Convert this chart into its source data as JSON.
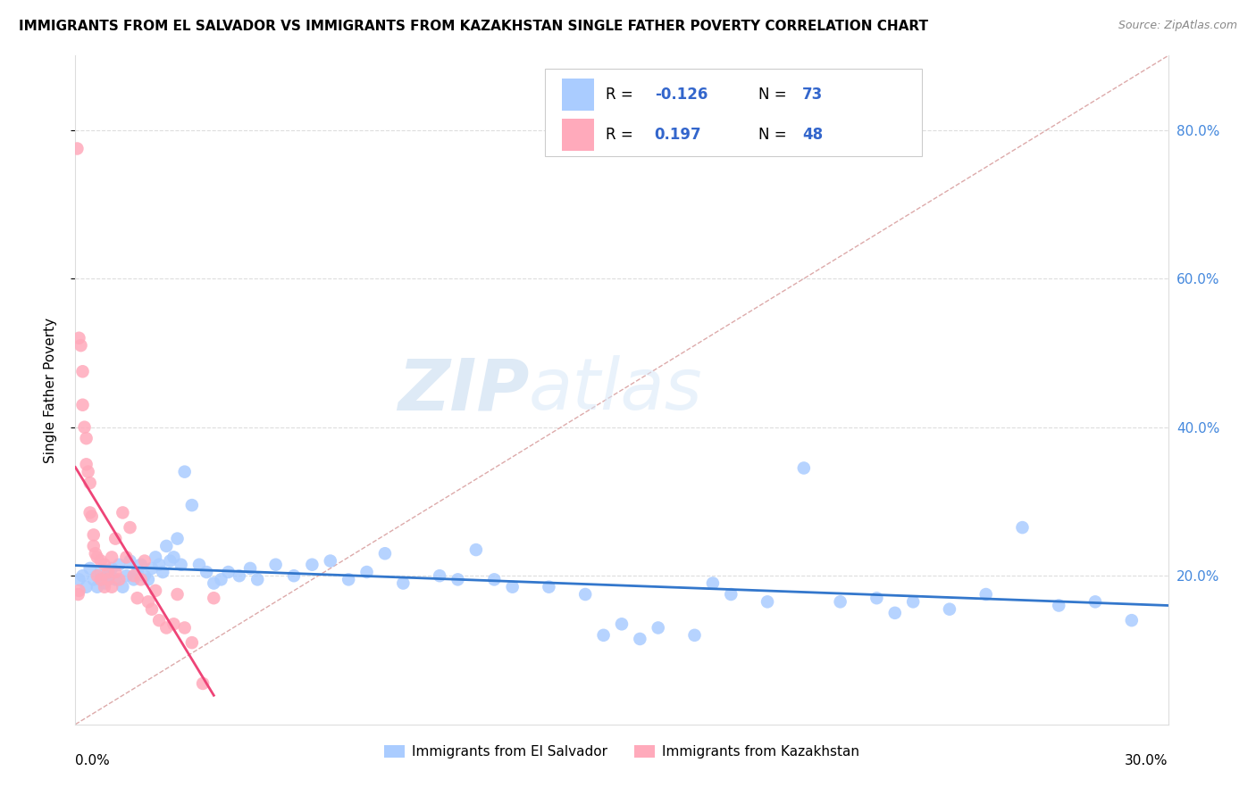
{
  "title": "IMMIGRANTS FROM EL SALVADOR VS IMMIGRANTS FROM KAZAKHSTAN SINGLE FATHER POVERTY CORRELATION CHART",
  "source": "Source: ZipAtlas.com",
  "ylabel": "Single Father Poverty",
  "right_yticks": [
    "80.0%",
    "60.0%",
    "40.0%",
    "20.0%"
  ],
  "right_ytick_vals": [
    0.8,
    0.6,
    0.4,
    0.2
  ],
  "legend1_label": "Immigrants from El Salvador",
  "legend2_label": "Immigrants from Kazakhstan",
  "R_el_salvador": -0.126,
  "N_el_salvador": 73,
  "R_kazakhstan": 0.197,
  "N_kazakhstan": 48,
  "el_salvador_color": "#aaccff",
  "kazakhstan_color": "#ffaabb",
  "el_salvador_line_color": "#3377cc",
  "kazakhstan_line_color": "#ee4477",
  "diagonal_color": "#ddaaaa",
  "xlim": [
    0.0,
    0.3
  ],
  "ylim": [
    0.0,
    0.9
  ],
  "el_salvador_x": [
    0.001,
    0.002,
    0.003,
    0.004,
    0.005,
    0.006,
    0.007,
    0.008,
    0.009,
    0.01,
    0.011,
    0.012,
    0.013,
    0.014,
    0.015,
    0.016,
    0.017,
    0.018,
    0.019,
    0.02,
    0.021,
    0.022,
    0.023,
    0.024,
    0.025,
    0.026,
    0.027,
    0.028,
    0.029,
    0.03,
    0.032,
    0.034,
    0.036,
    0.038,
    0.04,
    0.042,
    0.045,
    0.048,
    0.05,
    0.055,
    0.06,
    0.065,
    0.07,
    0.075,
    0.08,
    0.085,
    0.09,
    0.1,
    0.105,
    0.11,
    0.115,
    0.12,
    0.13,
    0.14,
    0.145,
    0.15,
    0.155,
    0.16,
    0.17,
    0.175,
    0.18,
    0.19,
    0.2,
    0.21,
    0.22,
    0.225,
    0.23,
    0.24,
    0.25,
    0.26,
    0.27,
    0.28,
    0.29
  ],
  "el_salvador_y": [
    0.195,
    0.2,
    0.185,
    0.21,
    0.195,
    0.185,
    0.205,
    0.19,
    0.2,
    0.21,
    0.195,
    0.215,
    0.185,
    0.2,
    0.22,
    0.195,
    0.205,
    0.215,
    0.2,
    0.195,
    0.21,
    0.225,
    0.215,
    0.205,
    0.24,
    0.22,
    0.225,
    0.25,
    0.215,
    0.34,
    0.295,
    0.215,
    0.205,
    0.19,
    0.195,
    0.205,
    0.2,
    0.21,
    0.195,
    0.215,
    0.2,
    0.215,
    0.22,
    0.195,
    0.205,
    0.23,
    0.19,
    0.2,
    0.195,
    0.235,
    0.195,
    0.185,
    0.185,
    0.175,
    0.12,
    0.135,
    0.115,
    0.13,
    0.12,
    0.19,
    0.175,
    0.165,
    0.345,
    0.165,
    0.17,
    0.15,
    0.165,
    0.155,
    0.175,
    0.265,
    0.16,
    0.165,
    0.14
  ],
  "kazakhstan_x": [
    0.0005,
    0.0008,
    0.001,
    0.001,
    0.0015,
    0.002,
    0.002,
    0.0025,
    0.003,
    0.003,
    0.0035,
    0.004,
    0.004,
    0.0045,
    0.005,
    0.005,
    0.0055,
    0.006,
    0.006,
    0.007,
    0.007,
    0.008,
    0.008,
    0.009,
    0.009,
    0.01,
    0.01,
    0.011,
    0.011,
    0.012,
    0.013,
    0.014,
    0.015,
    0.016,
    0.017,
    0.018,
    0.019,
    0.02,
    0.021,
    0.022,
    0.023,
    0.025,
    0.027,
    0.028,
    0.03,
    0.032,
    0.035,
    0.038
  ],
  "kazakhstan_y": [
    0.775,
    0.175,
    0.52,
    0.18,
    0.51,
    0.475,
    0.43,
    0.4,
    0.385,
    0.35,
    0.34,
    0.325,
    0.285,
    0.28,
    0.255,
    0.24,
    0.23,
    0.225,
    0.2,
    0.22,
    0.195,
    0.215,
    0.185,
    0.205,
    0.195,
    0.225,
    0.185,
    0.205,
    0.25,
    0.195,
    0.285,
    0.225,
    0.265,
    0.2,
    0.17,
    0.195,
    0.22,
    0.165,
    0.155,
    0.18,
    0.14,
    0.13,
    0.135,
    0.175,
    0.13,
    0.11,
    0.055,
    0.17
  ]
}
